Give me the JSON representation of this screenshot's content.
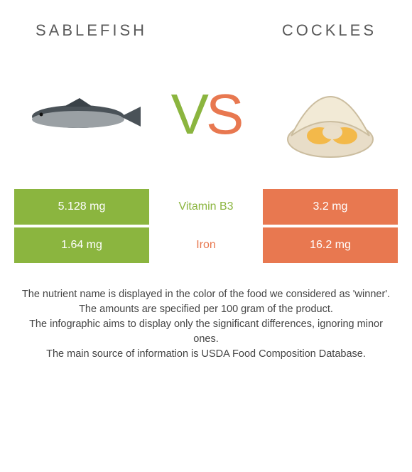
{
  "foods": {
    "left": {
      "title": "Sablefish",
      "color": "#8bb53f"
    },
    "right": {
      "title": "Cockles",
      "color": "#e87850"
    }
  },
  "vs": {
    "v": "V",
    "s": "S"
  },
  "rows": [
    {
      "nutrient": "Vitamin B3",
      "winner": "left",
      "left": "5.128 mg",
      "right": "3.2 mg"
    },
    {
      "nutrient": "Iron",
      "winner": "right",
      "left": "1.64 mg",
      "right": "16.2 mg"
    }
  ],
  "footnotes": [
    "The nutrient name is displayed in the color of the food we considered as 'winner'.",
    "The amounts are specified per 100 gram of the product.",
    "The infographic aims to display only the significant differences, ignoring minor ones.",
    "The main source of information is USDA Food Composition Database."
  ]
}
